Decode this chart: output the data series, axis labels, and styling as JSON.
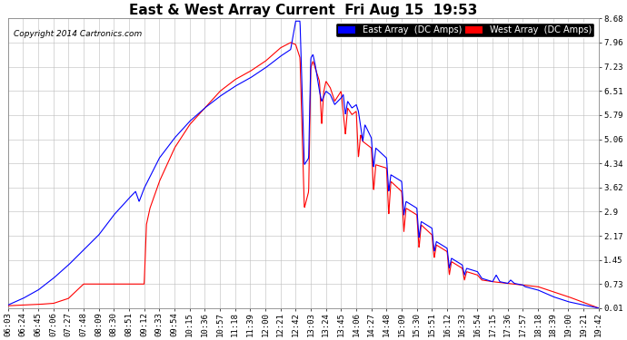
{
  "title": "East & West Array Current  Fri Aug 15  19:53",
  "copyright": "Copyright 2014 Cartronics.com",
  "east_label": "East Array  (DC Amps)",
  "west_label": "West Array  (DC Amps)",
  "east_color": "#0000ff",
  "west_color": "#ff0000",
  "background_color": "#ffffff",
  "grid_color": "#bbbbbb",
  "ylim": [
    0.01,
    8.68
  ],
  "yticks": [
    0.01,
    0.73,
    1.45,
    2.17,
    2.9,
    3.62,
    4.34,
    5.06,
    5.79,
    6.51,
    7.23,
    7.96,
    8.68
  ],
  "xtick_labels": [
    "06:03",
    "06:24",
    "06:45",
    "07:06",
    "07:27",
    "07:48",
    "08:09",
    "08:30",
    "08:51",
    "09:12",
    "09:33",
    "09:54",
    "10:15",
    "10:36",
    "10:57",
    "11:18",
    "11:39",
    "12:00",
    "12:21",
    "12:42",
    "13:03",
    "13:24",
    "13:45",
    "14:06",
    "14:27",
    "14:48",
    "15:09",
    "15:30",
    "15:51",
    "16:12",
    "16:33",
    "16:54",
    "17:15",
    "17:36",
    "17:57",
    "18:18",
    "18:39",
    "19:00",
    "19:21",
    "19:42"
  ],
  "title_fontsize": 11,
  "axis_fontsize": 6.5,
  "legend_fontsize": 7,
  "copyright_fontsize": 6.5
}
